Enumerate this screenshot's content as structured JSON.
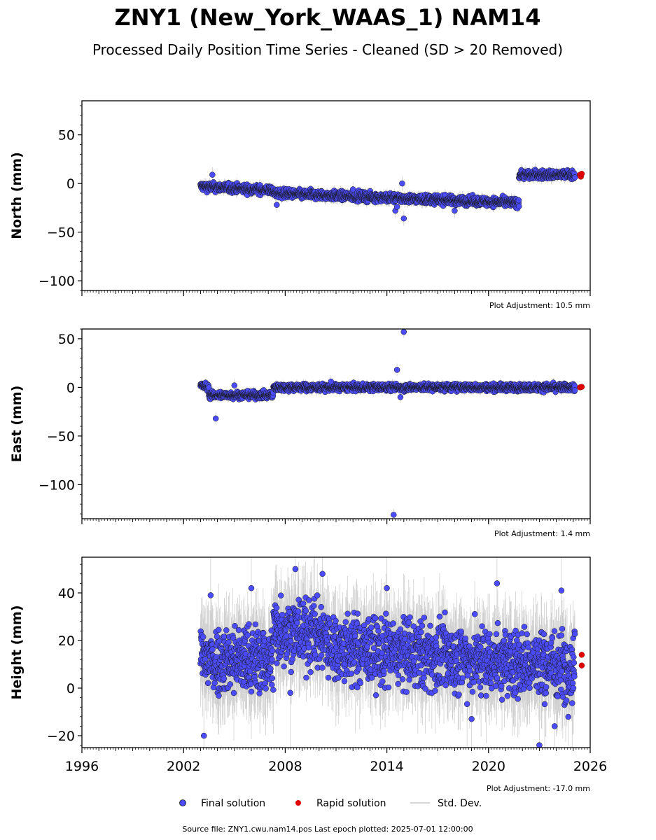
{
  "page": {
    "title": "ZNY1 (New_York_WAAS_1) NAM14",
    "subtitle": "Processed Daily Position Time Series - Cleaned (SD > 20 Removed)",
    "source": "Source file: ZNY1.cwu.nam14.pos  Last epoch plotted: 2025-07-01 12:00:00"
  },
  "legend": {
    "final": "Final solution",
    "rapid": "Rapid solution",
    "std": "Std. Dev.",
    "placement": "bottom-center"
  },
  "colors": {
    "final": "#4b4bff",
    "rapid": "#e00000",
    "std": "#a9a9a9",
    "edge": "#1a1a1a"
  },
  "chart_data": [
    {
      "type": "scatter",
      "ylabel": "North (mm)",
      "adjustment": "Plot Adjustment: 10.5 mm",
      "xlim": [
        1996,
        2026
      ],
      "ylim": [
        -110,
        85
      ],
      "yticks": [
        50,
        0,
        -50,
        -100
      ],
      "yticklabels": [
        "50",
        "0",
        "−50",
        "−100"
      ],
      "noise": 2.2,
      "segments": [
        {
          "x0": 2003.0,
          "x1": 2007.3,
          "y0": -3,
          "y1": -7
        },
        {
          "x0": 2007.3,
          "x1": 2021.8,
          "y0": -10,
          "y1": -20
        },
        {
          "x0": 2021.8,
          "x1": 2025.1,
          "y0": 9,
          "y1": 9
        }
      ],
      "outliers": [
        {
          "x": 2003.7,
          "y": 9
        },
        {
          "x": 2007.5,
          "y": -22
        },
        {
          "x": 2014.5,
          "y": -28
        },
        {
          "x": 2014.9,
          "y": 0
        },
        {
          "x": 2015.0,
          "y": -36
        },
        {
          "x": 2014.6,
          "y": -24
        },
        {
          "x": 2018.0,
          "y": -28
        },
        {
          "x": 2012.0,
          "y": -6
        }
      ],
      "rapid": [
        {
          "x": 2025.4,
          "y": 9
        },
        {
          "x": 2025.45,
          "y": 7
        },
        {
          "x": 2025.5,
          "y": 10
        }
      ]
    },
    {
      "type": "scatter",
      "ylabel": "East (mm)",
      "adjustment": "Plot Adjustment: 1.4 mm",
      "xlim": [
        1996,
        2026
      ],
      "ylim": [
        -135,
        60
      ],
      "yticks": [
        50,
        0,
        -50,
        -100
      ],
      "yticklabels": [
        "50",
        "0",
        "−50",
        "−100"
      ],
      "noise": 1.8,
      "segments": [
        {
          "x0": 2003.0,
          "x1": 2003.5,
          "y0": 2,
          "y1": 0
        },
        {
          "x0": 2003.5,
          "x1": 2007.3,
          "y0": -8,
          "y1": -8
        },
        {
          "x0": 2007.3,
          "x1": 2025.1,
          "y0": 0,
          "y1": 0
        }
      ],
      "outliers": [
        {
          "x": 2003.9,
          "y": -32
        },
        {
          "x": 2014.6,
          "y": 18
        },
        {
          "x": 2015.0,
          "y": 57
        },
        {
          "x": 2014.4,
          "y": -131
        },
        {
          "x": 2014.8,
          "y": -10
        },
        {
          "x": 2005.0,
          "y": 2
        },
        {
          "x": 2010.7,
          "y": 6
        }
      ],
      "rapid": [
        {
          "x": 2025.4,
          "y": 0
        },
        {
          "x": 2025.5,
          "y": 0.5
        }
      ]
    },
    {
      "type": "scatter",
      "ylabel": "Height (mm)",
      "adjustment": "Plot Adjustment: -17.0 mm",
      "xlim": [
        1996,
        2026
      ],
      "ylim": [
        -25,
        55
      ],
      "yticks": [
        40,
        20,
        0,
        -20
      ],
      "yticklabels": [
        "40",
        "20",
        "0",
        "−20"
      ],
      "xticks": [
        1996,
        2002,
        2008,
        2014,
        2020,
        2026
      ],
      "xticklabels": [
        "1996",
        "2002",
        "2008",
        "2014",
        "2020",
        "2026"
      ],
      "noise": 7,
      "segments": [
        {
          "x0": 2003.0,
          "x1": 2007.3,
          "y0": 12,
          "y1": 12
        },
        {
          "x0": 2007.3,
          "x1": 2010.5,
          "y0": 25,
          "y1": 22
        },
        {
          "x0": 2010.5,
          "x1": 2025.1,
          "y0": 17,
          "y1": 9
        }
      ],
      "outliers": [
        {
          "x": 2003.6,
          "y": 39
        },
        {
          "x": 2003.2,
          "y": -20
        },
        {
          "x": 2006.0,
          "y": 42
        },
        {
          "x": 2008.6,
          "y": 50
        },
        {
          "x": 2010.2,
          "y": 48
        },
        {
          "x": 2014.0,
          "y": 42
        },
        {
          "x": 2020.5,
          "y": 44
        },
        {
          "x": 2024.3,
          "y": 41
        },
        {
          "x": 2023.0,
          "y": -24
        },
        {
          "x": 2008.3,
          "y": -2
        },
        {
          "x": 2019.0,
          "y": -13
        },
        {
          "x": 2023.9,
          "y": -16
        }
      ],
      "rapid": [
        {
          "x": 2025.5,
          "y": 14
        },
        {
          "x": 2025.5,
          "y": 9.5
        }
      ]
    }
  ]
}
